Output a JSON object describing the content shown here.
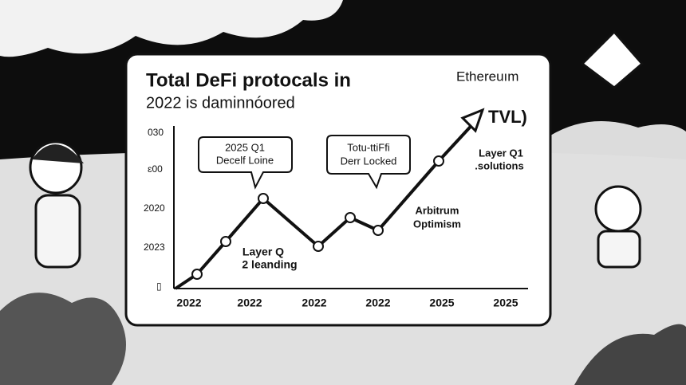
{
  "card": {
    "title": "Total DeFi protocals in",
    "subtitle": "2022 is daminnóored",
    "brand": "Ethereuım",
    "y_labels": [
      "030",
      "ɛ00",
      "2020",
      "2023",
      "▯"
    ],
    "x_labels": [
      "2022",
      "2022",
      "2022",
      "2022",
      "2025",
      "2025"
    ],
    "callouts": [
      [
        "2025 Q1",
        "Decelf Loine"
      ],
      [
        "Totu-ttiFfi",
        "Derr Locked"
      ]
    ],
    "annotations": {
      "tvl": "TVL)",
      "layer_q1": [
        "Layer Q1",
        ".solutions"
      ],
      "arbitrum": [
        "Arbitrum",
        "Optimism"
      ],
      "layer_q": [
        "Layer Q",
        "2 leanding"
      ]
    }
  }
}
